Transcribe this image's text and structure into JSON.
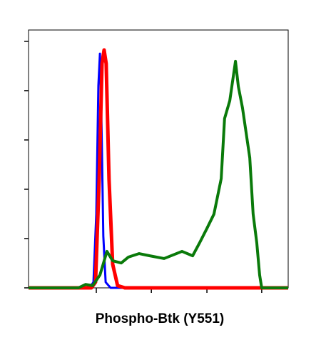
{
  "chart_data": {
    "type": "line",
    "x_axis_title": "Phospho-Btk (Y551)",
    "xlim": [
      0,
      100
    ],
    "ylim": [
      0,
      104.6
    ],
    "xticks": [
      26.1,
      47.3,
      68.7,
      89.8
    ],
    "yticks": [
      0,
      20,
      40,
      60,
      80,
      100
    ],
    "series": [
      {
        "color": "#0000ff",
        "width": 3,
        "x": [
          0,
          23.4,
          25.0,
          26.1,
          26.9,
          27.5,
          28.0,
          28.8,
          29.7,
          31.6,
          100
        ],
        "values": [
          0,
          0,
          2.3,
          30,
          82,
          95,
          73,
          21,
          2.3,
          0,
          0
        ]
      },
      {
        "color": "#ff0000",
        "width": 5,
        "x": [
          0,
          24.2,
          25.8,
          27.2,
          28.3,
          29.1,
          29.9,
          31.0,
          32.4,
          34.3,
          37.1,
          100
        ],
        "values": [
          0,
          0,
          2.3,
          44,
          91,
          96.5,
          91,
          44,
          9.6,
          0.9,
          0,
          0
        ]
      },
      {
        "color": "#0a7a0a",
        "width": 4,
        "x": [
          0,
          19.2,
          22.0,
          24.7,
          27.5,
          30.2,
          32.4,
          35.7,
          38.5,
          42.6,
          46.7,
          52.2,
          59.1,
          63.2,
          65.9,
          68.7,
          71.4,
          74.2,
          75.5,
          77.5,
          79.7,
          80.8,
          82.4,
          85.2,
          86.5,
          87.9,
          89.0,
          89.8,
          100
        ],
        "values": [
          0,
          0,
          1.4,
          0.9,
          5.2,
          14.8,
          11.0,
          10.1,
          12.5,
          13.9,
          13.0,
          11.9,
          14.8,
          13.0,
          18.3,
          24.1,
          29.9,
          44.3,
          68.7,
          75.9,
          91.9,
          81.7,
          73.0,
          52.8,
          29.9,
          18.3,
          5.2,
          0,
          0
        ]
      }
    ]
  }
}
